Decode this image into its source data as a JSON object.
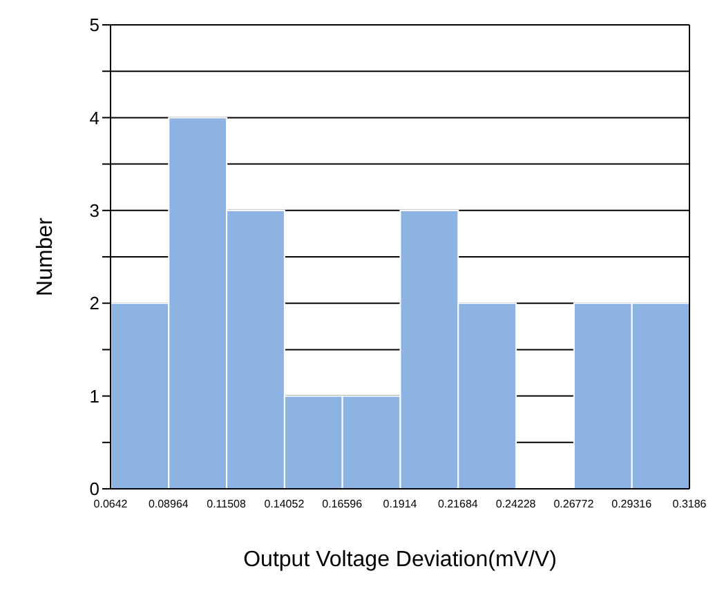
{
  "chart_data": {
    "type": "histogram",
    "xlabel": "Output Voltage Deviation(mV/V)",
    "ylabel": "Number",
    "bins": [
      0.0642,
      0.08964,
      0.11508,
      0.14052,
      0.16596,
      0.1914,
      0.21684,
      0.24228,
      0.26772,
      0.29316,
      0.3186
    ],
    "values": [
      2,
      4,
      3,
      1,
      1,
      3,
      2,
      0,
      2,
      2
    ],
    "color": "#8db3e2",
    "xlim": [
      0.0642,
      0.3186
    ],
    "xticks": [
      0.0642,
      0.08964,
      0.11508,
      0.14052,
      0.16596,
      0.1914,
      0.21684,
      0.24228,
      0.26772,
      0.29316,
      0.3186
    ],
    "ylim": [
      0,
      5
    ],
    "yticks": [
      0,
      {
        "value": 0.5,
        "label": null
      },
      1,
      {
        "value": 1.5,
        "label": null
      },
      2,
      {
        "value": 2.5,
        "label": null
      },
      3,
      {
        "value": 3.5,
        "label": null
      },
      4,
      {
        "value": 4.5,
        "label": null
      },
      5
    ],
    "grid": "y"
  }
}
